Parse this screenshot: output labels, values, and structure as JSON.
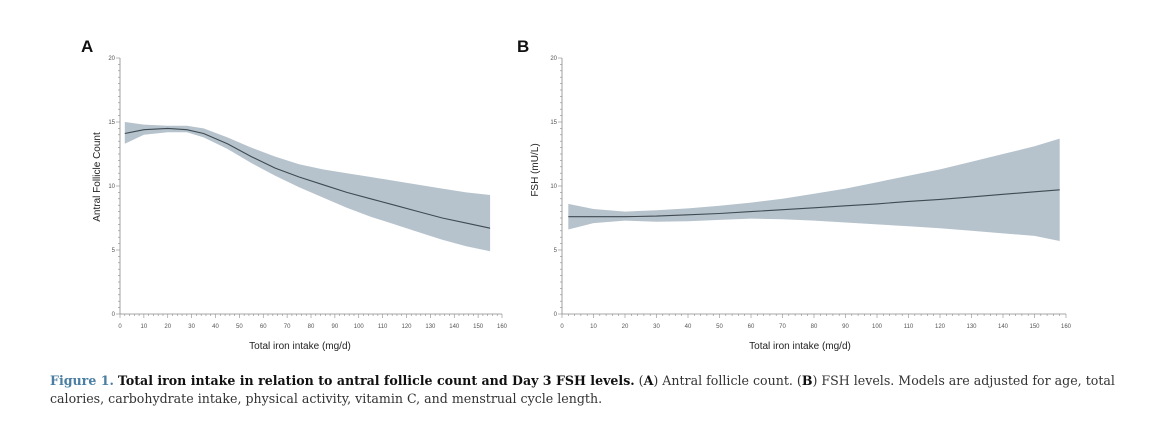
{
  "chart_data": [
    {
      "panel": "A",
      "type": "line",
      "title": "",
      "xlabel": "Total iron intake (mg/d)",
      "ylabel": "Antral Follicle Count",
      "xlim": [
        0,
        160
      ],
      "ylim": [
        0,
        20
      ],
      "xticks": [
        0,
        10,
        20,
        30,
        40,
        50,
        60,
        70,
        80,
        90,
        100,
        110,
        120,
        130,
        140,
        150,
        160
      ],
      "yticks": [
        0,
        5,
        10,
        15,
        20
      ],
      "x": [
        2,
        10,
        20,
        28,
        35,
        45,
        55,
        65,
        75,
        85,
        95,
        105,
        115,
        125,
        135,
        145,
        155
      ],
      "y": [
        14.1,
        14.4,
        14.5,
        14.4,
        14.1,
        13.3,
        12.3,
        11.4,
        10.7,
        10.1,
        9.5,
        9.0,
        8.5,
        8.0,
        7.5,
        7.1,
        6.7
      ],
      "lower": [
        13.3,
        14.0,
        14.2,
        14.2,
        13.8,
        12.9,
        11.8,
        10.8,
        9.9,
        9.1,
        8.3,
        7.6,
        7.0,
        6.4,
        5.8,
        5.3,
        4.9
      ],
      "upper": [
        15.0,
        14.8,
        14.7,
        14.7,
        14.5,
        13.8,
        13.0,
        12.3,
        11.7,
        11.3,
        11.0,
        10.7,
        10.4,
        10.1,
        9.8,
        9.5,
        9.3
      ]
    },
    {
      "panel": "B",
      "type": "line",
      "title": "",
      "xlabel": "Total iron intake (mg/d)",
      "ylabel": "FSH (mU/L)",
      "xlim": [
        0,
        160
      ],
      "ylim": [
        0,
        20
      ],
      "xticks": [
        0,
        10,
        20,
        30,
        40,
        50,
        60,
        70,
        80,
        90,
        100,
        110,
        120,
        130,
        140,
        150,
        160
      ],
      "yticks": [
        0,
        5,
        10,
        15,
        20
      ],
      "x": [
        2,
        10,
        20,
        30,
        40,
        50,
        60,
        70,
        80,
        90,
        100,
        110,
        120,
        130,
        140,
        150,
        158
      ],
      "y": [
        7.6,
        7.6,
        7.6,
        7.65,
        7.75,
        7.85,
        8.0,
        8.15,
        8.3,
        8.45,
        8.6,
        8.8,
        8.95,
        9.15,
        9.35,
        9.55,
        9.7
      ],
      "lower": [
        6.6,
        7.1,
        7.3,
        7.2,
        7.25,
        7.35,
        7.45,
        7.4,
        7.3,
        7.15,
        7.0,
        6.85,
        6.7,
        6.5,
        6.3,
        6.1,
        5.7
      ],
      "upper": [
        8.6,
        8.2,
        8.0,
        8.1,
        8.25,
        8.45,
        8.7,
        9.0,
        9.4,
        9.8,
        10.3,
        10.8,
        11.3,
        11.9,
        12.5,
        13.1,
        13.7
      ]
    }
  ],
  "caption": {
    "fig_label": "Figure 1.",
    "title": "Total iron intake in relation to antral follicle count and Day 3 FSH levels.",
    "open_paren_a": " (",
    "panel_a_letter": "A",
    "panel_a_text": ") Antral follicle count. (",
    "panel_b_letter": "B",
    "panel_b_text": ") FSH levels. Models are adjusted for age, total calories, carbohydrate intake, physical activity, vitamin C, and menstrual cycle length."
  }
}
